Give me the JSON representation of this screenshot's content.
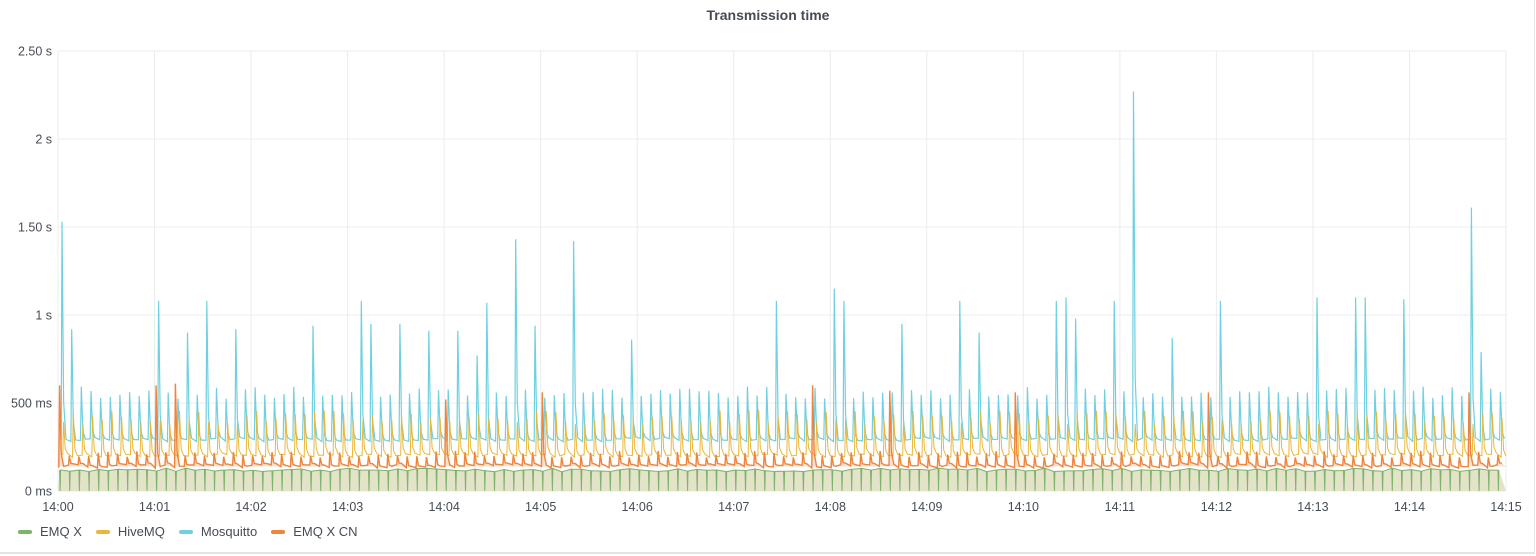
{
  "panel": {
    "title": "Transmission time"
  },
  "colors": {
    "emqx": "#7eb26d",
    "hivemq": "#eab839",
    "mosquitto": "#6ed0e0",
    "emqxcn": "#ef843c",
    "grid": "#ececec",
    "fill_emqx": "#e3e3c8"
  },
  "legend": [
    {
      "name": "EMQ X",
      "color": "#7eb26d"
    },
    {
      "name": "HiveMQ",
      "color": "#eab839"
    },
    {
      "name": "Mosquitto",
      "color": "#6ed0e0"
    },
    {
      "name": "EMQ X CN",
      "color": "#ef843c"
    }
  ],
  "chart_data": {
    "type": "line",
    "title": "Transmission time",
    "xlabel": "",
    "ylabel": "",
    "x_ticks": [
      "14:00",
      "14:01",
      "14:02",
      "14:03",
      "14:04",
      "14:05",
      "14:06",
      "14:07",
      "14:08",
      "14:09",
      "14:10",
      "14:11",
      "14:12",
      "14:13",
      "14:14",
      "14:15"
    ],
    "y_ticks": [
      "0 ms",
      "500 ms",
      "1 s",
      "1.50 s",
      "2 s",
      "2.50 s"
    ],
    "ylim_ms": [
      0,
      2500
    ],
    "xlim": [
      "14:00",
      "14:15"
    ],
    "grid": true,
    "legend_position": "bottom-left",
    "spike_interval_seconds": 6,
    "series": [
      {
        "name": "EMQ X",
        "baseline_ms": 120,
        "spike_ms": 150,
        "fill": true,
        "description": "flat ~120 ms baseline, area-filled, frequent dips to 0"
      },
      {
        "name": "HiveMQ",
        "baseline_ms": 200,
        "spike_ms": 420,
        "description": "baseline ~200 ms with periodic spikes 350-450 ms"
      },
      {
        "name": "Mosquitto",
        "baseline_ms": 290,
        "spike_ms": 560,
        "description": "baseline ~290 ms, periodic spikes ~550 ms, occasional large outliers",
        "notable_peaks": [
          {
            "t": "14:00:02",
            "ms": 1530
          },
          {
            "t": "14:00:06",
            "ms": 920
          },
          {
            "t": "14:01:01",
            "ms": 1080
          },
          {
            "t": "14:01:20",
            "ms": 900
          },
          {
            "t": "14:01:31",
            "ms": 1080
          },
          {
            "t": "14:01:46",
            "ms": 920
          },
          {
            "t": "14:02:37",
            "ms": 940
          },
          {
            "t": "14:03:07",
            "ms": 1080
          },
          {
            "t": "14:03:13",
            "ms": 950
          },
          {
            "t": "14:03:27",
            "ms": 950
          },
          {
            "t": "14:03:48",
            "ms": 910
          },
          {
            "t": "14:04:04",
            "ms": 910
          },
          {
            "t": "14:04:18",
            "ms": 770
          },
          {
            "t": "14:04:26",
            "ms": 1070
          },
          {
            "t": "14:04:44",
            "ms": 1430
          },
          {
            "t": "14:04:52",
            "ms": 940
          },
          {
            "t": "14:05:17",
            "ms": 1420
          },
          {
            "t": "14:05:53",
            "ms": 860
          },
          {
            "t": "14:07:26",
            "ms": 1080
          },
          {
            "t": "14:08:02",
            "ms": 1150
          },
          {
            "t": "14:08:07",
            "ms": 1080
          },
          {
            "t": "14:08:42",
            "ms": 950
          },
          {
            "t": "14:09:15",
            "ms": 1080
          },
          {
            "t": "14:09:31",
            "ms": 900
          },
          {
            "t": "14:10:16",
            "ms": 1080
          },
          {
            "t": "14:10:25",
            "ms": 1100
          },
          {
            "t": "14:10:27",
            "ms": 1130
          },
          {
            "t": "14:10:30",
            "ms": 980
          },
          {
            "t": "14:10:51",
            "ms": 1080
          },
          {
            "t": "14:11:06",
            "ms": 2270
          },
          {
            "t": "14:11:29",
            "ms": 870
          },
          {
            "t": "14:11:58",
            "ms": 1080
          },
          {
            "t": "14:13:02",
            "ms": 1100
          },
          {
            "t": "14:13:26",
            "ms": 1100
          },
          {
            "t": "14:13:30",
            "ms": 1100
          },
          {
            "t": "14:13:52",
            "ms": 1090
          },
          {
            "t": "14:14:38",
            "ms": 1610
          },
          {
            "t": "14:14:43",
            "ms": 790
          }
        ]
      },
      {
        "name": "EMQ X CN",
        "baseline_ms": 140,
        "spike_ms": 210,
        "description": "baseline ~140 ms with periodic spikes ~200 ms, occasional 580-620 ms outliers",
        "notable_peaks": [
          {
            "t": "14:00:00",
            "ms": 600
          },
          {
            "t": "14:01:00",
            "ms": 600
          },
          {
            "t": "14:01:10",
            "ms": 610
          },
          {
            "t": "14:04:00",
            "ms": 520
          },
          {
            "t": "14:05:00",
            "ms": 560
          },
          {
            "t": "14:07:48",
            "ms": 600
          },
          {
            "t": "14:08:36",
            "ms": 570
          },
          {
            "t": "14:09:54",
            "ms": 560
          },
          {
            "t": "14:11:54",
            "ms": 560
          },
          {
            "t": "14:14:33",
            "ms": 560
          },
          {
            "t": "14:14:57",
            "ms": 540
          }
        ]
      }
    ]
  }
}
